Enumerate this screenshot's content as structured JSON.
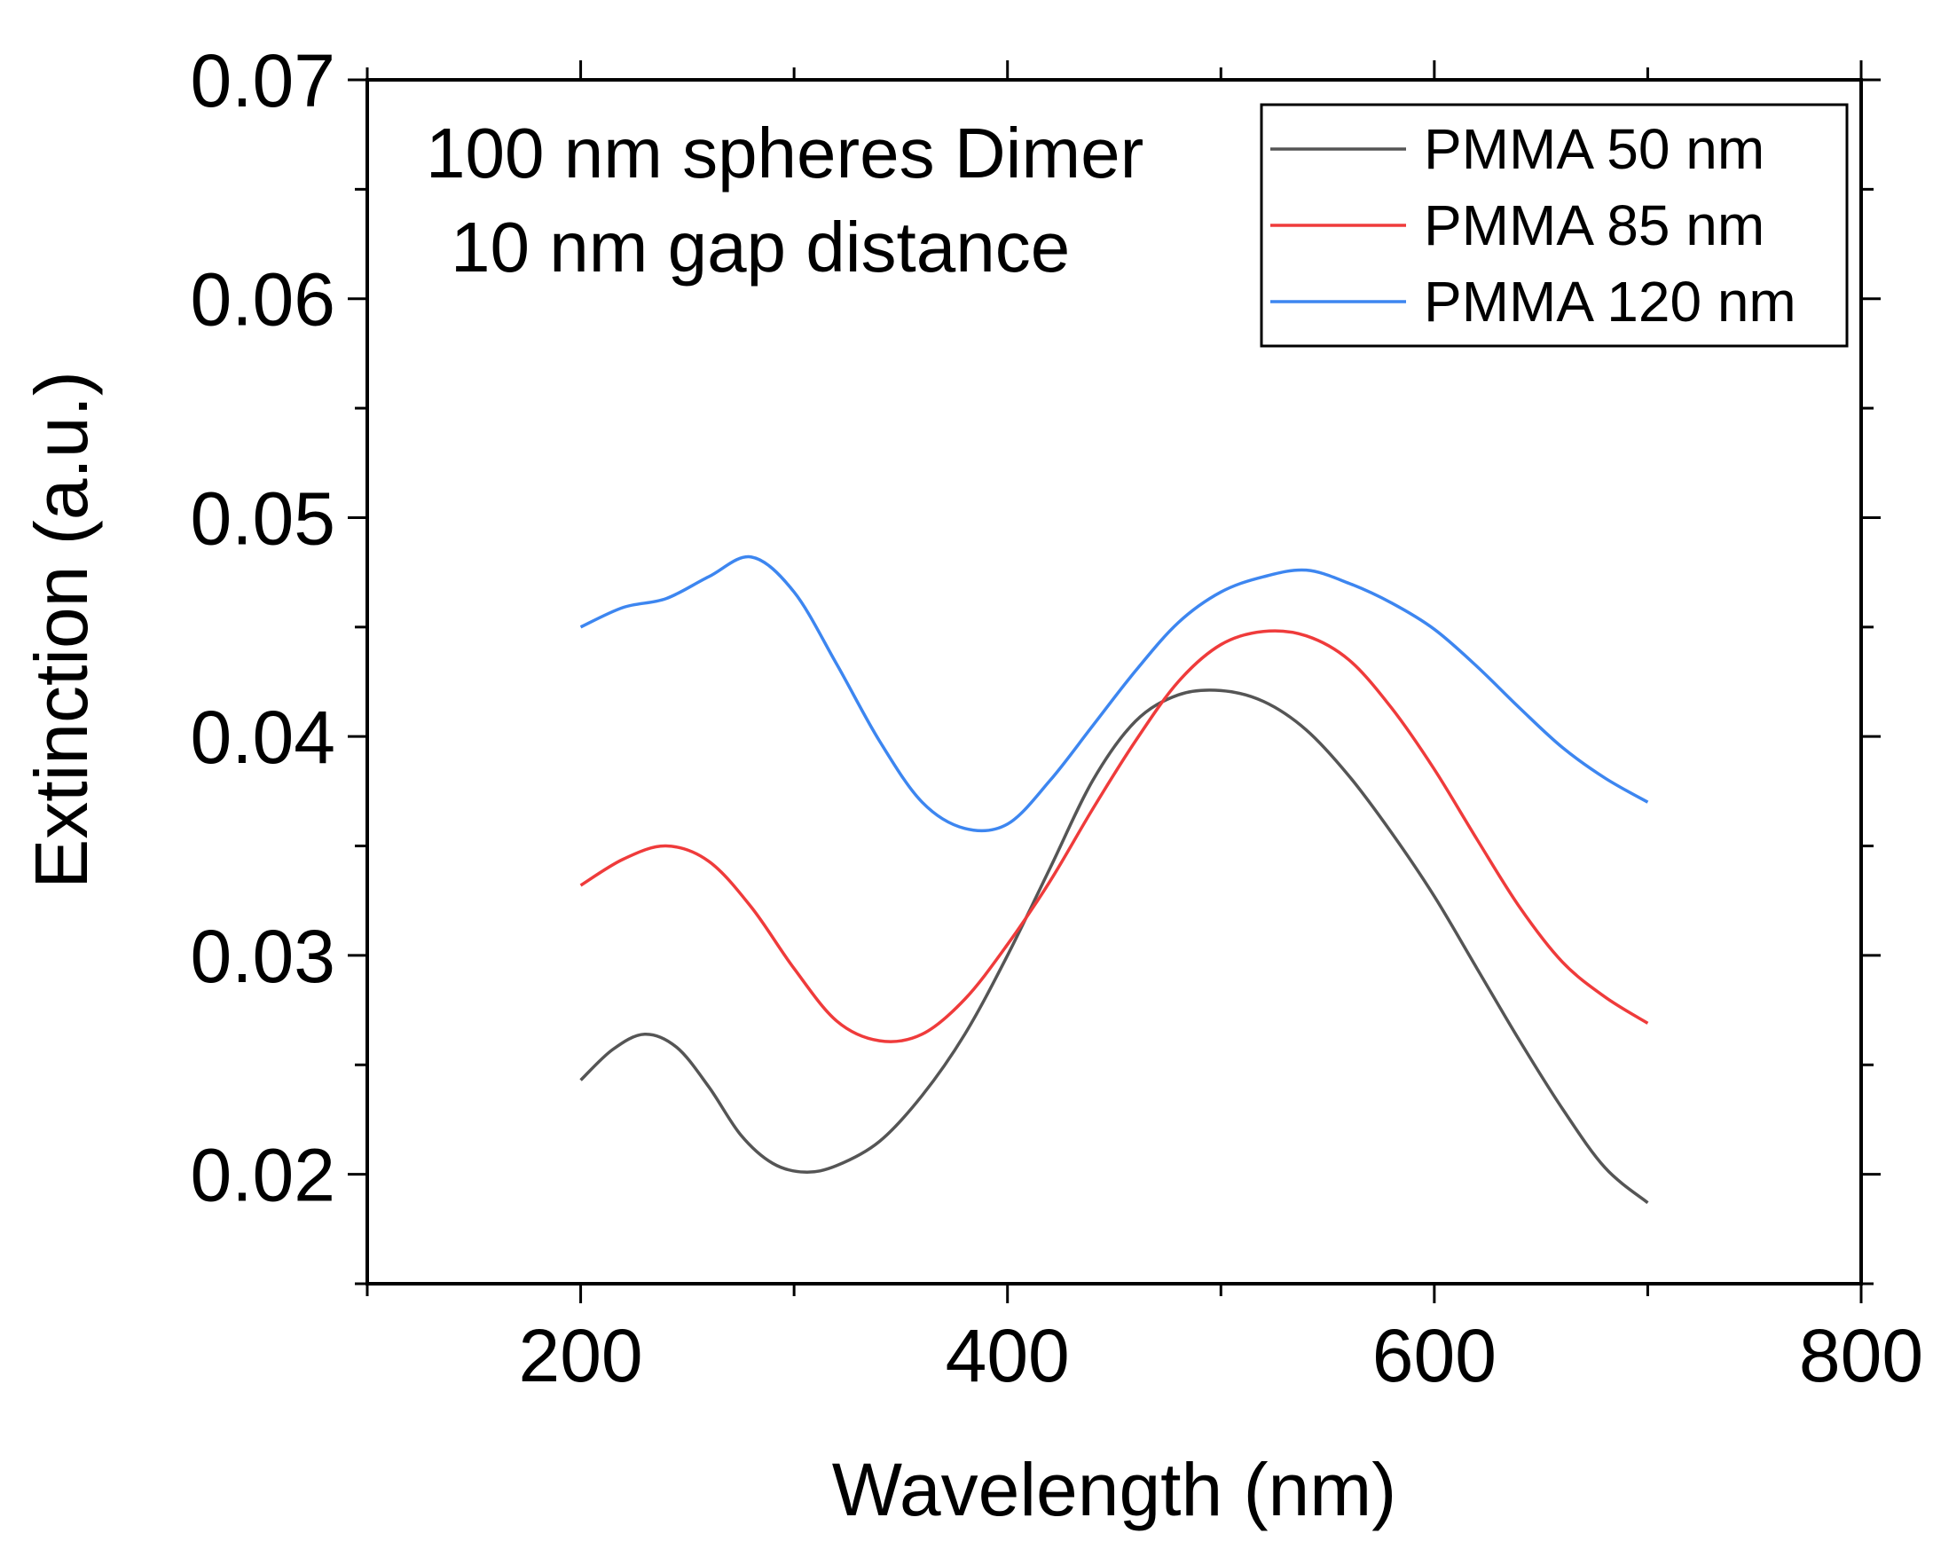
{
  "chart_data": {
    "type": "line",
    "title": "",
    "xlabel": "Wavelength (nm)",
    "ylabel": "Extinction (a.u.)",
    "xlim": [
      100,
      800
    ],
    "ylim": [
      0.015,
      0.07
    ],
    "xticks": [
      200,
      400,
      600,
      800
    ],
    "xtick_labels": [
      "200",
      "400",
      "600",
      "800"
    ],
    "yticks": [
      0.02,
      0.03,
      0.04,
      0.05,
      0.06,
      0.07
    ],
    "ytick_labels": [
      "0.02",
      "0.03",
      "0.04",
      "0.05",
      "0.06",
      "0.07"
    ],
    "annotations": [
      "100 nm spheres Dimer",
      "10 nm gap distance"
    ],
    "legend_position": "top-right",
    "series": [
      {
        "name": "PMMA 50 nm",
        "color": "#555555",
        "x": [
          200,
          215,
          230,
          245,
          260,
          275,
          290,
          305,
          320,
          340,
          360,
          380,
          400,
          420,
          440,
          460,
          480,
          500,
          520,
          540,
          560,
          580,
          600,
          620,
          640,
          660,
          680,
          700
        ],
        "y": [
          0.0243,
          0.0257,
          0.0264,
          0.0258,
          0.024,
          0.0218,
          0.0205,
          0.0201,
          0.0204,
          0.0215,
          0.0236,
          0.0264,
          0.03,
          0.034,
          0.038,
          0.0407,
          0.0419,
          0.0421,
          0.0416,
          0.0403,
          0.0382,
          0.0356,
          0.0327,
          0.0294,
          0.0261,
          0.023,
          0.0203,
          0.0187
        ]
      },
      {
        "name": "PMMA 85 nm",
        "color": "#ef3b3b",
        "x": [
          200,
          220,
          240,
          260,
          280,
          300,
          320,
          340,
          360,
          380,
          400,
          420,
          440,
          460,
          480,
          500,
          520,
          540,
          560,
          580,
          600,
          620,
          640,
          660,
          680,
          700
        ],
        "y": [
          0.0332,
          0.0344,
          0.035,
          0.0343,
          0.0322,
          0.0294,
          0.027,
          0.0261,
          0.0264,
          0.028,
          0.0305,
          0.0334,
          0.0367,
          0.0398,
          0.0425,
          0.0442,
          0.0448,
          0.0446,
          0.0435,
          0.0413,
          0.0385,
          0.0353,
          0.0322,
          0.0297,
          0.0281,
          0.0269
        ]
      },
      {
        "name": "PMMA 120 nm",
        "color": "#3d86f0",
        "x": [
          200,
          220,
          240,
          260,
          280,
          300,
          320,
          340,
          360,
          380,
          400,
          420,
          440,
          460,
          480,
          500,
          520,
          540,
          560,
          580,
          600,
          620,
          640,
          660,
          680,
          700
        ],
        "y": [
          0.045,
          0.0459,
          0.0463,
          0.0473,
          0.0482,
          0.0466,
          0.0433,
          0.0398,
          0.037,
          0.0358,
          0.036,
          0.038,
          0.0405,
          0.043,
          0.0452,
          0.0466,
          0.0473,
          0.0476,
          0.047,
          0.0461,
          0.0449,
          0.0432,
          0.0413,
          0.0395,
          0.0381,
          0.037
        ]
      }
    ]
  }
}
